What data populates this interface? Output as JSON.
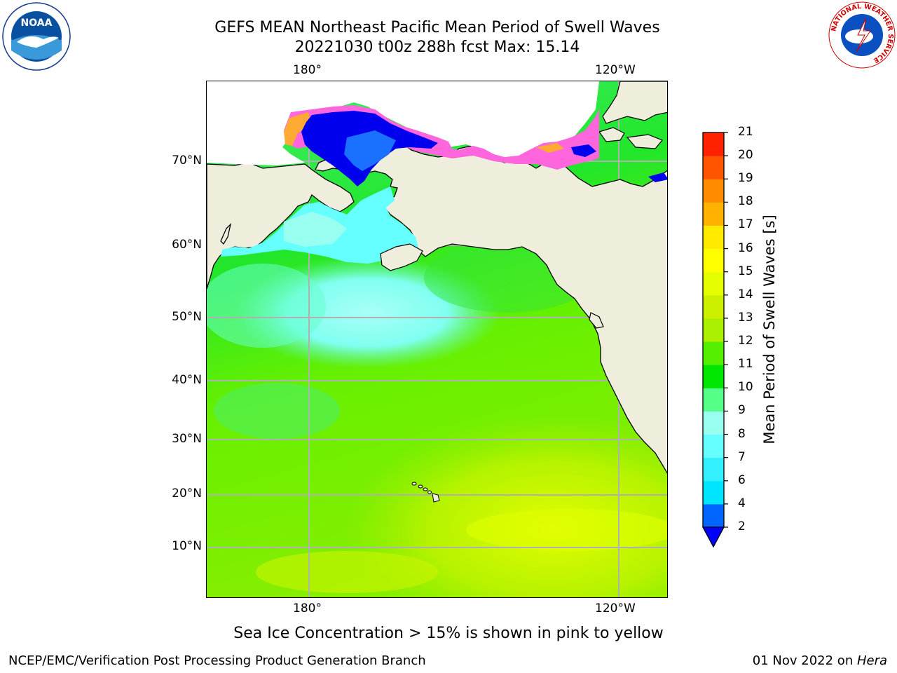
{
  "title": {
    "line1": "GEFS MEAN Northeast Pacific Mean Period of Swell Waves",
    "line2": "20221030 t00z 288h fcst   Max: 15.14"
  },
  "map": {
    "top_lon_labels": [
      "180°",
      "120°W"
    ],
    "bottom_lon_labels": [
      "180°",
      "120°W"
    ],
    "lat_labels": [
      "70°N",
      "60°N",
      "50°N",
      "40°N",
      "30°N",
      "20°N",
      "10°N"
    ],
    "colors": {
      "land": "#efeedd",
      "gridline": "#b0b0b0"
    }
  },
  "colorbar": {
    "label": "Mean Period of Swell Waves [s]",
    "ticks": [
      "2",
      "4",
      "6",
      "7",
      "8",
      "9",
      "10",
      "11",
      "12",
      "13",
      "14",
      "15",
      "16",
      "17",
      "18",
      "19",
      "20",
      "21"
    ],
    "colors": [
      "#0066ff",
      "#00e5ff",
      "#33f0ff",
      "#66ffff",
      "#99ffee",
      "#55ff88",
      "#00e600",
      "#55f000",
      "#aaf000",
      "#ccf000",
      "#e6ff00",
      "#ffff00",
      "#ffea00",
      "#ffb300",
      "#ff8c00",
      "#ff5500",
      "#ff2200",
      "#ff0000"
    ],
    "extend_color": "#0000ff"
  },
  "note": "Sea Ice Concentration > 15% is shown in pink to yellow",
  "footer": {
    "left": "NCEP/EMC/Verification Post Processing Product Generation Branch",
    "right_prefix": "01 Nov 2022 on ",
    "right_italic": "Hera"
  },
  "logos": {
    "noaa_text": "NOAA",
    "nws_ring_text": "NATIONAL WEATHER SERVICE"
  }
}
